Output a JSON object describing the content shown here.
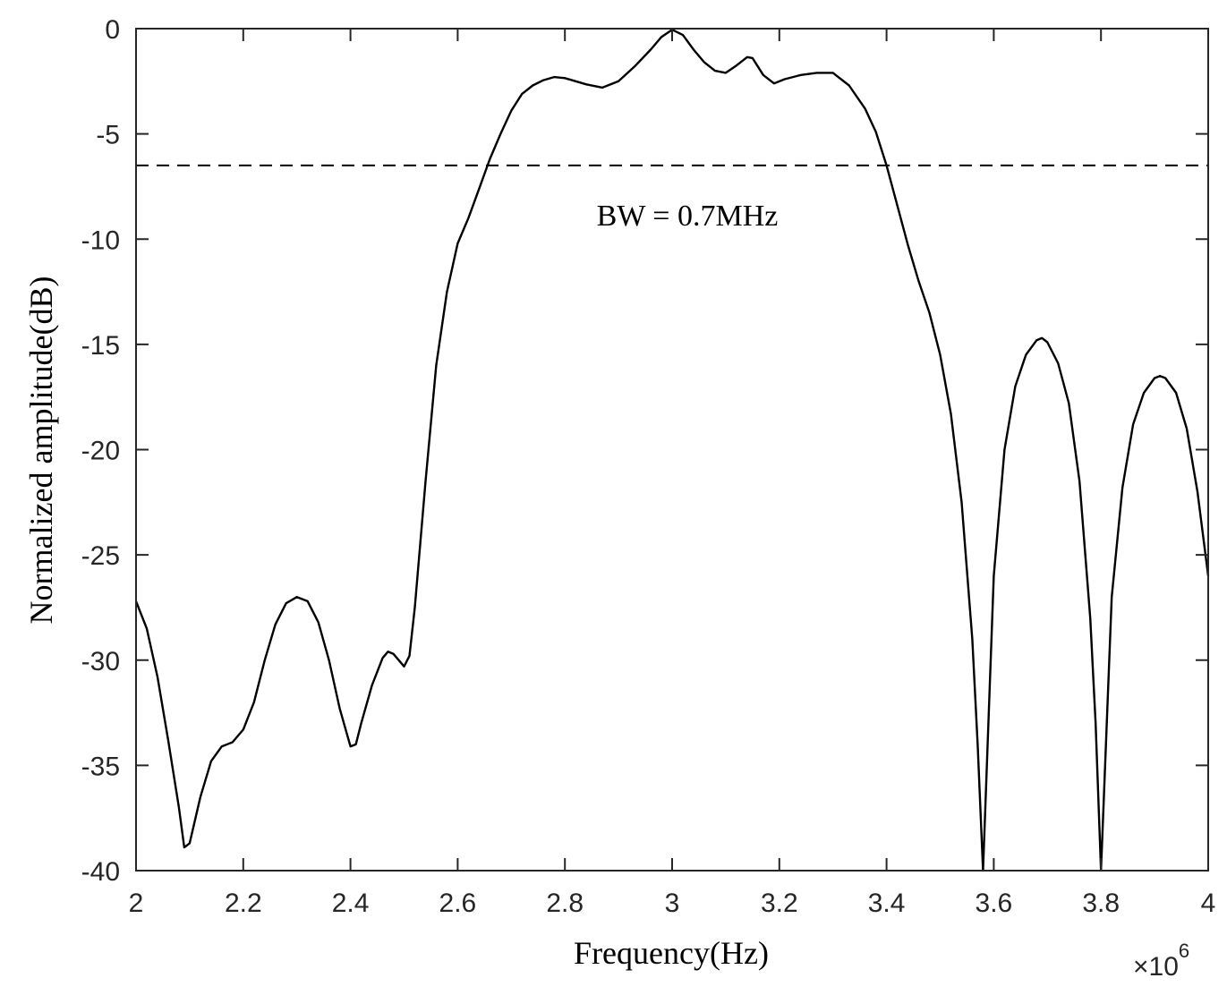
{
  "chart_data": {
    "type": "line",
    "title": "",
    "xlabel": "Frequency(Hz)",
    "ylabel": "Normalized amplitude(dB)",
    "x_multiplier_label": "×10",
    "x_multiplier_exponent": "6",
    "xlim": [
      2,
      4
    ],
    "ylim": [
      -40,
      0
    ],
    "x_ticks": [
      2,
      2.2,
      2.4,
      2.6,
      2.8,
      3,
      3.2,
      3.4,
      3.6,
      3.8,
      4
    ],
    "x_tick_labels": [
      "2",
      "2.2",
      "2.4",
      "2.6",
      "2.8",
      "3",
      "3.2",
      "3.4",
      "3.6",
      "3.8",
      "4"
    ],
    "y_ticks": [
      0,
      -5,
      -10,
      -15,
      -20,
      -25,
      -30,
      -35,
      -40
    ],
    "y_tick_labels": [
      "0",
      "-5",
      "-10",
      "-15",
      "-20",
      "-25",
      "-30",
      "-35",
      "-40"
    ],
    "grid": false,
    "legend": "none",
    "annotation": "BW = 0.7MHz",
    "colors": {
      "line": "#000000",
      "axis": "#262626",
      "background": "#ffffff"
    },
    "threshold": {
      "y": -6.5,
      "style": "dashed"
    },
    "series": [
      {
        "x": [
          2.0,
          2.02,
          2.04,
          2.06,
          2.08,
          2.09,
          2.1,
          2.12,
          2.14,
          2.16,
          2.18,
          2.2,
          2.22,
          2.24,
          2.26,
          2.28,
          2.3,
          2.32,
          2.34,
          2.36,
          2.38,
          2.4,
          2.41,
          2.42,
          2.44,
          2.46,
          2.47,
          2.48,
          2.5,
          2.51,
          2.52,
          2.54,
          2.56,
          2.58,
          2.6,
          2.62,
          2.64,
          2.66,
          2.68,
          2.7,
          2.72,
          2.74,
          2.76,
          2.78,
          2.8,
          2.82,
          2.84,
          2.87,
          2.9,
          2.93,
          2.96,
          2.98,
          3.0,
          3.02,
          3.04,
          3.06,
          3.08,
          3.1,
          3.12,
          3.14,
          3.15,
          3.17,
          3.19,
          3.21,
          3.24,
          3.27,
          3.3,
          3.33,
          3.36,
          3.38,
          3.4,
          3.42,
          3.44,
          3.46,
          3.48,
          3.5,
          3.52,
          3.54,
          3.56,
          3.57,
          3.58,
          3.59,
          3.6,
          3.62,
          3.64,
          3.66,
          3.68,
          3.69,
          3.7,
          3.72,
          3.74,
          3.76,
          3.78,
          3.79,
          3.8,
          3.81,
          3.82,
          3.84,
          3.86,
          3.88,
          3.9,
          3.91,
          3.92,
          3.94,
          3.96,
          3.98,
          4.0
        ],
        "y": [
          -27.2,
          -28.5,
          -30.8,
          -33.8,
          -37.0,
          -38.9,
          -38.7,
          -36.5,
          -34.8,
          -34.1,
          -33.9,
          -33.3,
          -32.0,
          -30.0,
          -28.3,
          -27.3,
          -27.0,
          -27.2,
          -28.2,
          -30.0,
          -32.3,
          -34.1,
          -34.0,
          -33.0,
          -31.2,
          -29.9,
          -29.6,
          -29.7,
          -30.3,
          -29.8,
          -27.5,
          -21.5,
          -16.0,
          -12.5,
          -10.2,
          -9.0,
          -7.6,
          -6.2,
          -5.0,
          -3.9,
          -3.1,
          -2.7,
          -2.45,
          -2.3,
          -2.35,
          -2.5,
          -2.65,
          -2.8,
          -2.5,
          -1.8,
          -1.0,
          -0.4,
          -0.05,
          -0.3,
          -1.0,
          -1.6,
          -2.0,
          -2.1,
          -1.75,
          -1.35,
          -1.4,
          -2.2,
          -2.6,
          -2.4,
          -2.2,
          -2.1,
          -2.1,
          -2.7,
          -3.8,
          -4.9,
          -6.5,
          -8.4,
          -10.3,
          -12.0,
          -13.5,
          -15.5,
          -18.3,
          -22.5,
          -29.0,
          -34.0,
          -40.0,
          -33.0,
          -26.0,
          -20.0,
          -17.0,
          -15.5,
          -14.8,
          -14.7,
          -14.9,
          -15.9,
          -17.8,
          -21.5,
          -28.0,
          -33.0,
          -40.0,
          -33.5,
          -27.0,
          -21.8,
          -18.8,
          -17.3,
          -16.6,
          -16.5,
          -16.6,
          -17.3,
          -19.0,
          -22.0,
          -26.0
        ]
      }
    ]
  }
}
